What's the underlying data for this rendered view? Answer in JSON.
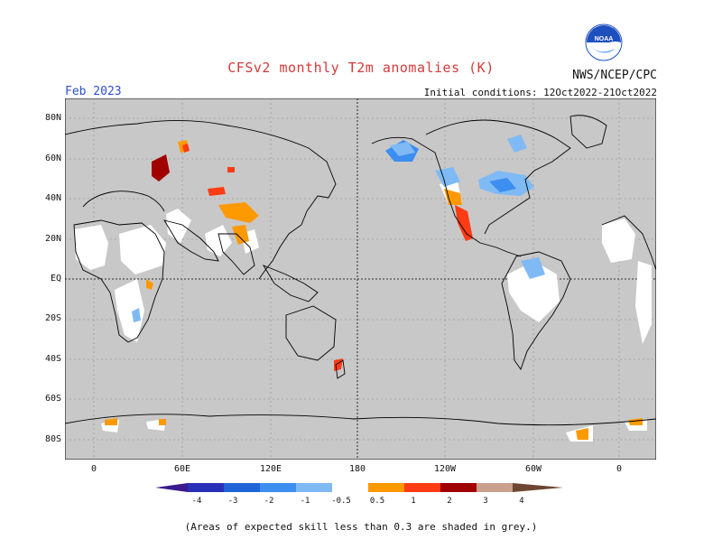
{
  "header": {
    "title": "CFSv2 monthly T2m anomalies (K)",
    "agency": "NWS/NCEP/CPC",
    "valid_month": "Feb 2023",
    "initial_conditions": "Initial conditions: 12Oct2022-21Oct2022",
    "logo_text": "NOAA"
  },
  "map": {
    "background_color": "#c8c8c8",
    "grid_style": "dotted",
    "lat_labels": [
      "80N",
      "60N",
      "40N",
      "20N",
      "EQ",
      "20S",
      "40S",
      "60S",
      "80S"
    ],
    "lon_labels": [
      "0",
      "60E",
      "120E",
      "180",
      "120W",
      "60W",
      "0"
    ],
    "center_longitude": "180"
  },
  "legend": {
    "tick_labels": [
      "-4",
      "-3",
      "-2",
      "-1",
      "-0.5",
      "0.5",
      "1",
      "2",
      "3",
      "4"
    ],
    "colors": {
      "lt_-4": "#3b1a8f",
      "-4_-3": "#2830b8",
      "-3_-2": "#1e64d6",
      "-2_-1": "#3c8ef0",
      "-1_-0.5": "#7fbaf5",
      "-0.5_0.5": "#ffffff",
      "0.5_1": "#ff9900",
      "1_2": "#ff3c14",
      "2_3": "#a00000",
      "3_4": "#c8a08c",
      "gt_4": "#6e4632"
    }
  },
  "footnote": "(Areas of expected skill less than 0.3 are shaded in grey.)"
}
